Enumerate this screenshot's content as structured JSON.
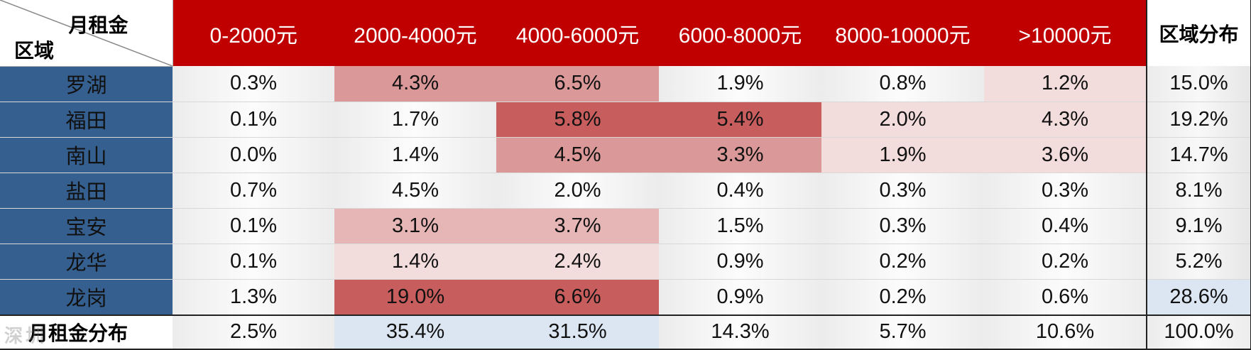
{
  "header": {
    "corner_top": "月租金",
    "corner_bottom": "区域",
    "columns": [
      "0-2000元",
      "2000-4000元",
      "4000-6000元",
      "6000-8000元",
      "8000-10000元",
      ">10000元"
    ],
    "summary_column": "区域分布"
  },
  "rows": [
    {
      "district": "罗湖",
      "values": [
        "0.3%",
        "4.3%",
        "6.5%",
        "1.9%",
        "0.8%",
        "1.2%"
      ],
      "total": "15.0%"
    },
    {
      "district": "福田",
      "values": [
        "0.1%",
        "1.7%",
        "5.8%",
        "5.4%",
        "2.0%",
        "4.3%"
      ],
      "total": "19.2%"
    },
    {
      "district": "南山",
      "values": [
        "0.0%",
        "1.4%",
        "4.5%",
        "3.3%",
        "1.9%",
        "3.6%"
      ],
      "total": "14.7%"
    },
    {
      "district": "盐田",
      "values": [
        "0.7%",
        "4.5%",
        "2.0%",
        "0.4%",
        "0.3%",
        "0.3%"
      ],
      "total": "8.1%"
    },
    {
      "district": "宝安",
      "values": [
        "0.1%",
        "3.1%",
        "3.7%",
        "1.5%",
        "0.3%",
        "0.4%"
      ],
      "total": "9.1%"
    },
    {
      "district": "龙华",
      "values": [
        "0.1%",
        "1.4%",
        "2.4%",
        "0.9%",
        "0.2%",
        "0.2%"
      ],
      "total": "5.2%"
    },
    {
      "district": "龙岗",
      "values": [
        "1.3%",
        "19.0%",
        "6.6%",
        "0.9%",
        "0.2%",
        "0.6%"
      ],
      "total": "28.6%"
    }
  ],
  "total_row": {
    "label": "月租金分布",
    "watermark": "深圳",
    "values": [
      "2.5%",
      "35.4%",
      "31.5%",
      "14.3%",
      "5.7%",
      "10.6%"
    ],
    "total": "100.0%"
  },
  "colors": {
    "header_red": "#c00000",
    "row_header_blue": "#355f8f",
    "highlight_light": "#f2dcdc",
    "highlight_mid": "#e6b5b5",
    "highlight_strong": "#db9898",
    "highlight_max": "#c85d5d",
    "highlight_blue": "#dce6f2"
  }
}
